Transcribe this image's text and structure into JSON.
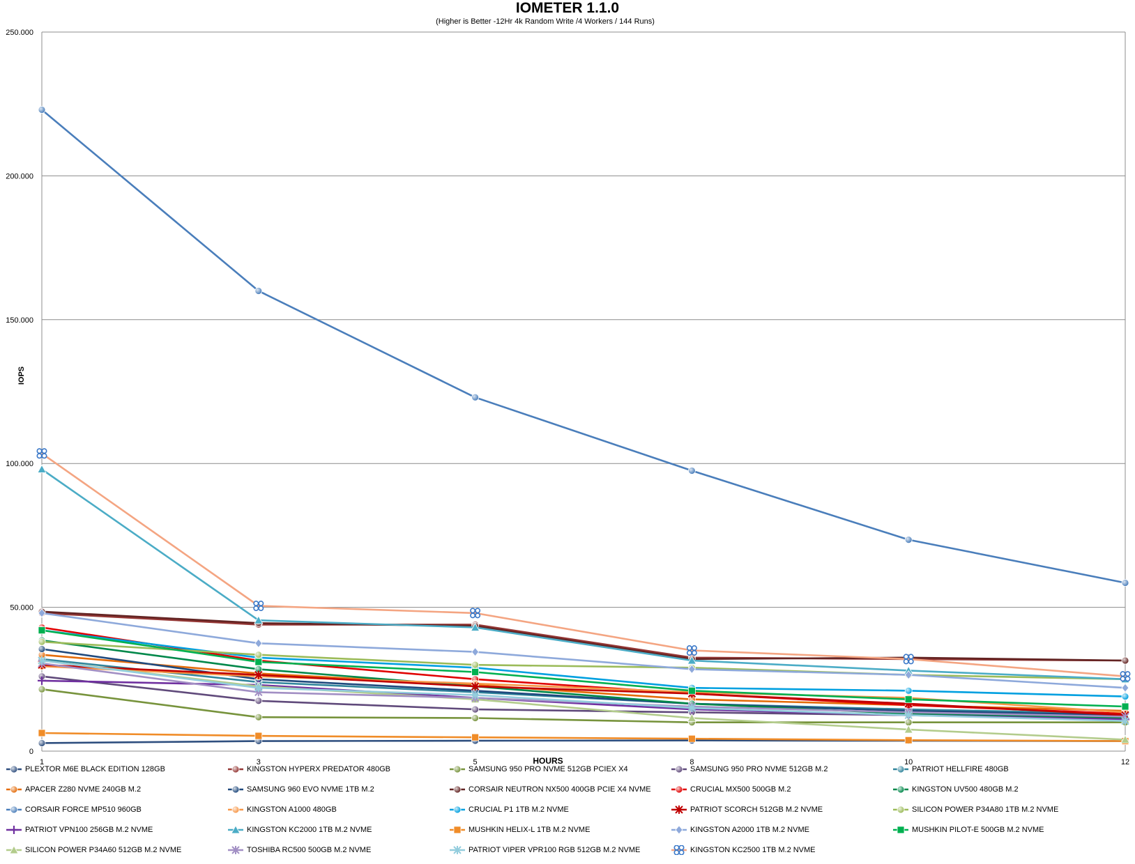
{
  "chart_data": {
    "type": "line",
    "title": "IOMETER 1.1.0",
    "subtitle": "(Higher is Better -12Hr 4k Random Write /4 Workers / 144 Runs)",
    "xlabel": "HOURS",
    "ylabel": "IOPS",
    "x": [
      1,
      3,
      5,
      8,
      10,
      12
    ],
    "ylim": [
      0,
      250000
    ],
    "yticks": [
      0,
      50000,
      100000,
      150000,
      200000,
      250000
    ],
    "ytick_labels": [
      "0",
      "50.000",
      "100.000",
      "150.000",
      "200.000",
      "250.000"
    ],
    "grid": true,
    "legend_position": "bottom",
    "series": [
      {
        "name": "PLEXTOR M6E BLACK EDITION 128GB",
        "color": "#2f4f7f",
        "marker": "circle",
        "values": [
          2800,
          3500,
          3600,
          3700,
          3600,
          3500
        ]
      },
      {
        "name": "KINGSTON HYPERX PREDATOR 480GB",
        "color": "#953735",
        "marker": "circle",
        "values": [
          48000,
          44000,
          44000,
          32500,
          32000,
          31500
        ]
      },
      {
        "name": "SAMSUNG 950 PRO NVME 512GB PCIEX X4",
        "color": "#77933c",
        "marker": "circle",
        "values": [
          21500,
          11800,
          11500,
          10000,
          10000,
          10000
        ]
      },
      {
        "name": "SAMSUNG 950 PRO NVME 512GB M.2",
        "color": "#604a7b",
        "marker": "circle",
        "values": [
          26000,
          17500,
          14500,
          13500,
          12500,
          11500
        ]
      },
      {
        "name": "PATRIOT HELLFIRE 480GB",
        "color": "#31859c",
        "marker": "circle",
        "values": [
          32000,
          24000,
          20500,
          16500,
          14500,
          13000
        ]
      },
      {
        "name": "APACER Z280 NVME 240GB M.2",
        "color": "#e46c0a",
        "marker": "circle",
        "values": [
          33500,
          27000,
          23000,
          18000,
          16000,
          14000
        ]
      },
      {
        "name": "SAMSUNG 960 EVO NVME 1TB M.2",
        "color": "#1f497d",
        "marker": "circle",
        "values": [
          35500,
          25000,
          21000,
          16500,
          14000,
          12500
        ]
      },
      {
        "name": "CORSAIR NEUTRON NX500 400GB PCIE X4 NVME",
        "color": "#632423",
        "marker": "circle",
        "values": [
          48500,
          44500,
          43500,
          32000,
          32500,
          31500
        ]
      },
      {
        "name": "CRUCIAL MX500 500GB M.2",
        "color": "#e00000",
        "marker": "circle",
        "values": [
          43000,
          31500,
          25000,
          20000,
          16000,
          13000
        ]
      },
      {
        "name": "KINGSTON UV500 480GB M.2",
        "color": "#00884a",
        "marker": "circle",
        "values": [
          38500,
          28500,
          22500,
          16500,
          13000,
          11500
        ]
      },
      {
        "name": "CORSAIR FORCE MP510 960GB",
        "color": "#4a7ebb",
        "marker": "circle",
        "values": [
          223000,
          160000,
          123000,
          97500,
          73500,
          58500
        ]
      },
      {
        "name": "KINGSTON A1000 480GB",
        "color": "#f79646",
        "marker": "circle",
        "values": [
          29500,
          26000,
          23500,
          20500,
          18500,
          13500
        ]
      },
      {
        "name": "CRUCIAL P1 1TB M.2 NVME",
        "color": "#00a0e0",
        "marker": "circle",
        "values": [
          42000,
          32500,
          29000,
          22000,
          21000,
          19000
        ]
      },
      {
        "name": "PATRIOT SCORCH 512GB M.2 NVME",
        "color": "#c00000",
        "marker": "star",
        "values": [
          30000,
          26500,
          22500,
          20000,
          16500,
          12500
        ]
      },
      {
        "name": "SILICON POWER P34A80 1TB M.2 NVME",
        "color": "#9bbb59",
        "marker": "circle",
        "values": [
          38000,
          33500,
          30000,
          29000,
          26500,
          25000
        ]
      },
      {
        "name": "PATRIOT VPN100 256GB M.2 NVME",
        "color": "#7030a0",
        "marker": "plus",
        "values": [
          24500,
          23000,
          18500,
          14500,
          12500,
          11000
        ]
      },
      {
        "name": "KINGSTON KC2000 1TB M.2 NVME",
        "color": "#4bacc6",
        "marker": "triangle",
        "values": [
          98000,
          45500,
          43000,
          31500,
          28000,
          25000
        ]
      },
      {
        "name": "MUSHKIN HELIX-L 1TB M.2 NVME",
        "color": "#f08c28",
        "marker": "square",
        "values": [
          6300,
          5300,
          4800,
          4300,
          3800,
          3500
        ]
      },
      {
        "name": "KINGSTON A2000 1TB M.2 NVME",
        "color": "#8ea9db",
        "marker": "diamond",
        "values": [
          48000,
          37500,
          34500,
          28500,
          26500,
          22000
        ]
      },
      {
        "name": "MUSHKIN PILOT-E 500GB M.2 NVME",
        "color": "#00b050",
        "marker": "square",
        "values": [
          42000,
          31000,
          27500,
          21000,
          18000,
          15500
        ]
      },
      {
        "name": "SILICON POWER P34A60 512GB M.2 NVME",
        "color": "#b3cc8c",
        "marker": "triangle",
        "values": [
          31500,
          22500,
          18000,
          11500,
          7500,
          4000
        ]
      },
      {
        "name": "TOSHIBA RC500 500GB M.2 NVME",
        "color": "#a28fc4",
        "marker": "star",
        "values": [
          30500,
          20500,
          18500,
          15500,
          13500,
          12000
        ]
      },
      {
        "name": "PATRIOT VIPER VPR100 RGB 512GB M.2 NVME",
        "color": "#93cddd",
        "marker": "star",
        "values": [
          31500,
          22000,
          19500,
          15000,
          12500,
          10500
        ]
      },
      {
        "name": "KINGSTON KC2500 1TB M.2 NVME",
        "color": "#f4a582",
        "marker": "clover",
        "values": [
          103500,
          50500,
          48000,
          35000,
          32000,
          26000
        ]
      }
    ]
  }
}
